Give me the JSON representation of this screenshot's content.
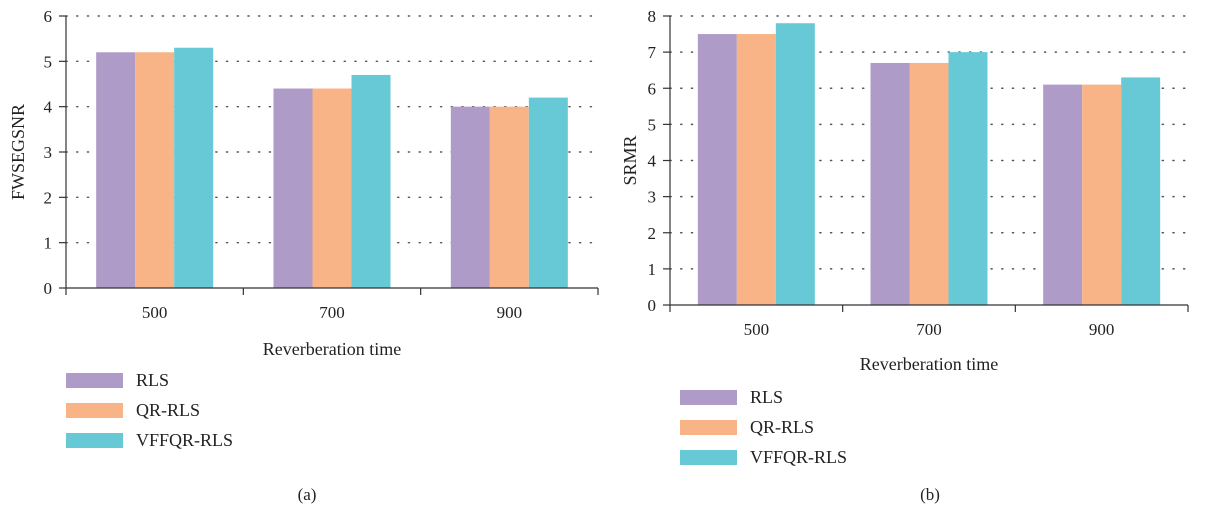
{
  "colors": {
    "RLS": "#ae9bc7",
    "QR-RLS": "#f8b387",
    "VFFQR-RLS": "#67c9d6",
    "axis": "#333333",
    "grid": "#555555"
  },
  "chart_data": [
    {
      "type": "bar",
      "caption": "(a)",
      "categories": [
        "500",
        "700",
        "900"
      ],
      "series": [
        {
          "name": "RLS",
          "values": [
            5.2,
            4.4,
            4.0
          ]
        },
        {
          "name": "QR-RLS",
          "values": [
            5.2,
            4.4,
            4.0
          ]
        },
        {
          "name": "VFFQR-RLS",
          "values": [
            5.3,
            4.7,
            4.2
          ]
        }
      ],
      "xlabel": "Reverberation time",
      "ylabel": "FWSEGSNR",
      "ylim": [
        0,
        6
      ],
      "yticks": [
        0,
        1,
        2,
        3,
        4,
        5,
        6
      ],
      "grid": "horizontal dotted",
      "legend": "bottom-left"
    },
    {
      "type": "bar",
      "caption": "(b)",
      "categories": [
        "500",
        "700",
        "900"
      ],
      "series": [
        {
          "name": "RLS",
          "values": [
            7.5,
            6.7,
            6.1
          ]
        },
        {
          "name": "QR-RLS",
          "values": [
            7.5,
            6.7,
            6.1
          ]
        },
        {
          "name": "VFFQR-RLS",
          "values": [
            7.8,
            7.0,
            6.3
          ]
        }
      ],
      "xlabel": "Reverberation time",
      "ylabel": "SRMR",
      "ylim": [
        0,
        8
      ],
      "yticks": [
        0,
        1,
        2,
        3,
        4,
        5,
        6,
        7,
        8
      ],
      "grid": "horizontal dotted",
      "legend": "bottom-left"
    }
  ]
}
